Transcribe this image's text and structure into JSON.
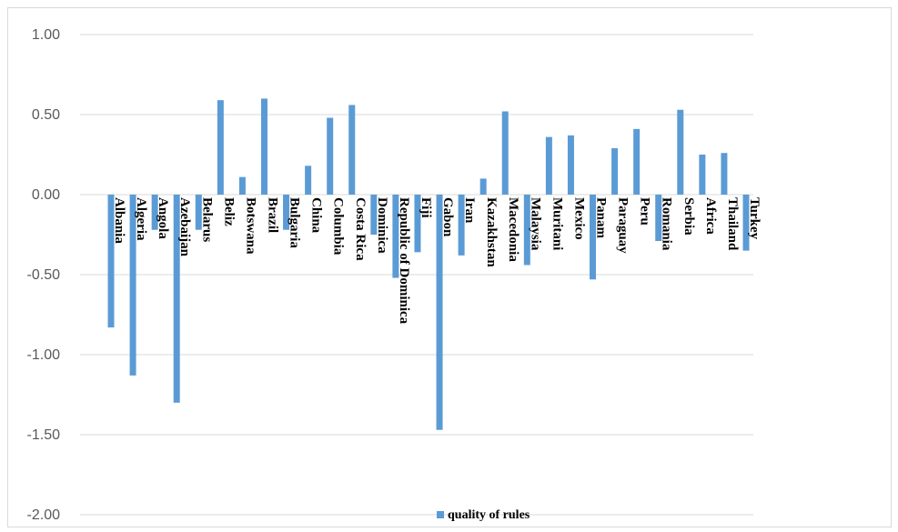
{
  "chart_data": {
    "type": "bar",
    "categories": [
      "Albania",
      "Algeria",
      "Angola",
      "Azebaijan",
      "Belarus",
      "Beliz",
      "Botswana",
      "Brazil",
      "Bulgaria",
      "China",
      "Columbia",
      "Costa Rica",
      "Dominica",
      "Republic of Dominica",
      "Fiji",
      "Gabon",
      "Iran",
      "Kazakhstan",
      "Macedonia",
      "Malaysia",
      "Muritani",
      "Mexico",
      "Panam",
      "Paraguay",
      "Peru",
      "Romania",
      "Serbia",
      "Africa",
      "Thailand",
      "Turkey"
    ],
    "series": [
      {
        "name": "quality of rules",
        "values": [
          -0.83,
          -1.13,
          -0.22,
          -1.3,
          -0.22,
          0.59,
          0.11,
          0.6,
          -0.22,
          0.18,
          0.48,
          0.56,
          -0.25,
          -0.52,
          -0.36,
          -1.47,
          -0.38,
          0.1,
          0.52,
          -0.44,
          0.36,
          0.37,
          -0.53,
          0.29,
          0.41,
          -0.29,
          0.53,
          0.25,
          0.26,
          -0.35
        ]
      }
    ],
    "ylim": [
      -2.0,
      1.0
    ],
    "yticks": [
      "1.00",
      "0.50",
      "0.00",
      "-0.50",
      "-1.00",
      "-1.50",
      "-2.00"
    ],
    "ytick_values": [
      1.0,
      0.5,
      0.0,
      -0.5,
      -1.0,
      -1.5,
      -2.0
    ],
    "grid": true,
    "legend_position": "bottom",
    "bar_color": "#5b9bd5",
    "xlabel": "",
    "ylabel": "",
    "title": ""
  }
}
